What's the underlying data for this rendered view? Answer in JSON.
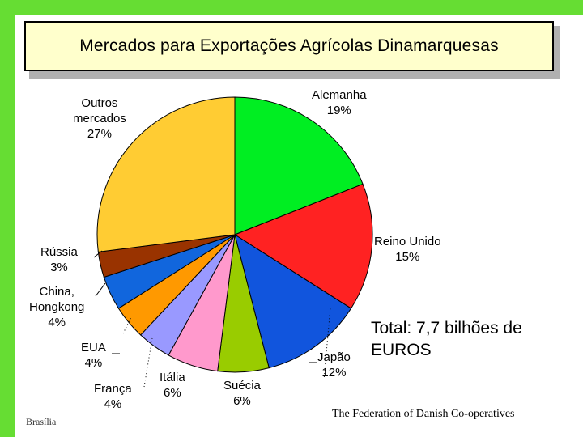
{
  "chart_data": {
    "type": "pie",
    "title": "Mercados para Exportações Agrícolas Dinamarquesas",
    "slices": [
      {
        "name": "Alemanha",
        "value": 19,
        "value_label": "19%",
        "color": "#00ee22"
      },
      {
        "name": "Reino Unido",
        "value": 15,
        "value_label": "15%",
        "color": "#ff2222"
      },
      {
        "name": "Japão",
        "value": 12,
        "value_label": "12%",
        "color": "#1155dd"
      },
      {
        "name": "Suécia",
        "value": 6,
        "value_label": "6%",
        "color": "#99cc00"
      },
      {
        "name": "Itália",
        "value": 6,
        "value_label": "6%",
        "color": "#ff99cc"
      },
      {
        "name": "França",
        "value": 4,
        "value_label": "4%",
        "color": "#9999ff"
      },
      {
        "name": "EUA",
        "value": 4,
        "value_label": "4%",
        "color": "#ff9900"
      },
      {
        "name": "China, Hongkong",
        "value": 4,
        "value_label": "4%",
        "color": "#1166dd"
      },
      {
        "name": "Rússia",
        "value": 3,
        "value_label": "3%",
        "color": "#993300"
      },
      {
        "name": "Outros mercados",
        "value": 27,
        "value_label": "27%",
        "color": "#ffcc33"
      }
    ],
    "annotation": "Total: 7,7 bilhões de EUROS"
  },
  "labels": {
    "alemanha": {
      "name": "Alemanha",
      "pct": "19%"
    },
    "reino_unido": {
      "name": "Reino Unido",
      "pct": "15%"
    },
    "japao": {
      "name": "Japão",
      "pct": "12%"
    },
    "suecia": {
      "name": "Suécia",
      "pct": "6%"
    },
    "italia": {
      "name": "Itália",
      "pct": "6%"
    },
    "franca": {
      "name": "França",
      "pct": "4%"
    },
    "eua": {
      "name": "EUA",
      "pct": "4%"
    },
    "china_line1": "China,",
    "china_line2": "Hongkong",
    "china_pct": "4%",
    "russia": {
      "name": "Rússia",
      "pct": "3%"
    },
    "outros_line1": "Outros",
    "outros_line2": "mercados",
    "outros_pct": "27%"
  },
  "total_line1": "Total: 7,7 bilhões de",
  "total_line2": "EUROS",
  "footer_left": "Brasília",
  "footer_right": "The Federation of Danish Co-operatives"
}
